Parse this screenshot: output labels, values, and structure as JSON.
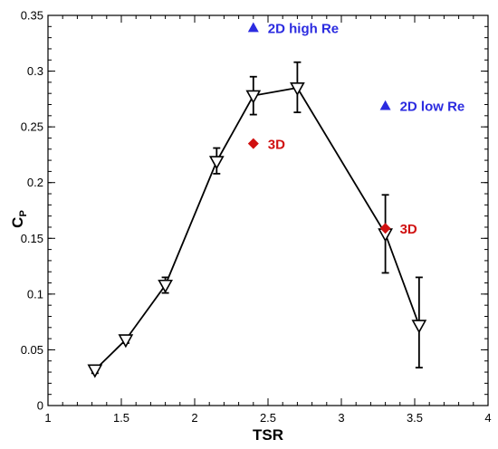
{
  "chart_data": {
    "type": "scatter",
    "title": "",
    "xlabel": "TSR",
    "ylabel_main": "C",
    "ylabel_sub": "P",
    "xlim": [
      1,
      4
    ],
    "ylim": [
      0,
      0.35
    ],
    "xticks": [
      "1",
      "1.5",
      "2",
      "2.5",
      "3",
      "3.5",
      "4"
    ],
    "yticks": [
      "0",
      "0.05",
      "0.1",
      "0.15",
      "0.2",
      "0.25",
      "0.3",
      "0.35"
    ],
    "grid": false,
    "series": [
      {
        "color": "#000000",
        "marker": "down-triangle-open",
        "line": true,
        "points": [
          {
            "x": 1.32,
            "y": 0.032,
            "err_lo": 0.029,
            "err_hi": 0.035
          },
          {
            "x": 1.53,
            "y": 0.059,
            "err_lo": 0.056,
            "err_hi": 0.062
          },
          {
            "x": 1.8,
            "y": 0.108,
            "err_lo": 0.101,
            "err_hi": 0.115
          },
          {
            "x": 2.15,
            "y": 0.219,
            "err_lo": 0.208,
            "err_hi": 0.231
          },
          {
            "x": 2.4,
            "y": 0.278,
            "err_lo": 0.261,
            "err_hi": 0.295
          },
          {
            "x": 2.7,
            "y": 0.285,
            "err_lo": 0.263,
            "err_hi": 0.308
          },
          {
            "x": 3.3,
            "y": 0.154,
            "err_lo": 0.119,
            "err_hi": 0.189
          },
          {
            "x": 3.53,
            "y": 0.072,
            "err_lo": 0.034,
            "err_hi": 0.115
          }
        ]
      },
      {
        "color": "#2b2be0",
        "marker": "up-triangle-filled",
        "line": false,
        "points": [
          {
            "x": 2.4,
            "y": 0.339,
            "label": "2D high Re"
          },
          {
            "x": 3.3,
            "y": 0.269,
            "label": "2D low Re"
          }
        ]
      },
      {
        "color": "#d01010",
        "marker": "diamond-filled",
        "line": false,
        "points": [
          {
            "x": 2.4,
            "y": 0.235,
            "label": "3D"
          },
          {
            "x": 3.3,
            "y": 0.159,
            "label": "3D"
          }
        ]
      }
    ]
  }
}
